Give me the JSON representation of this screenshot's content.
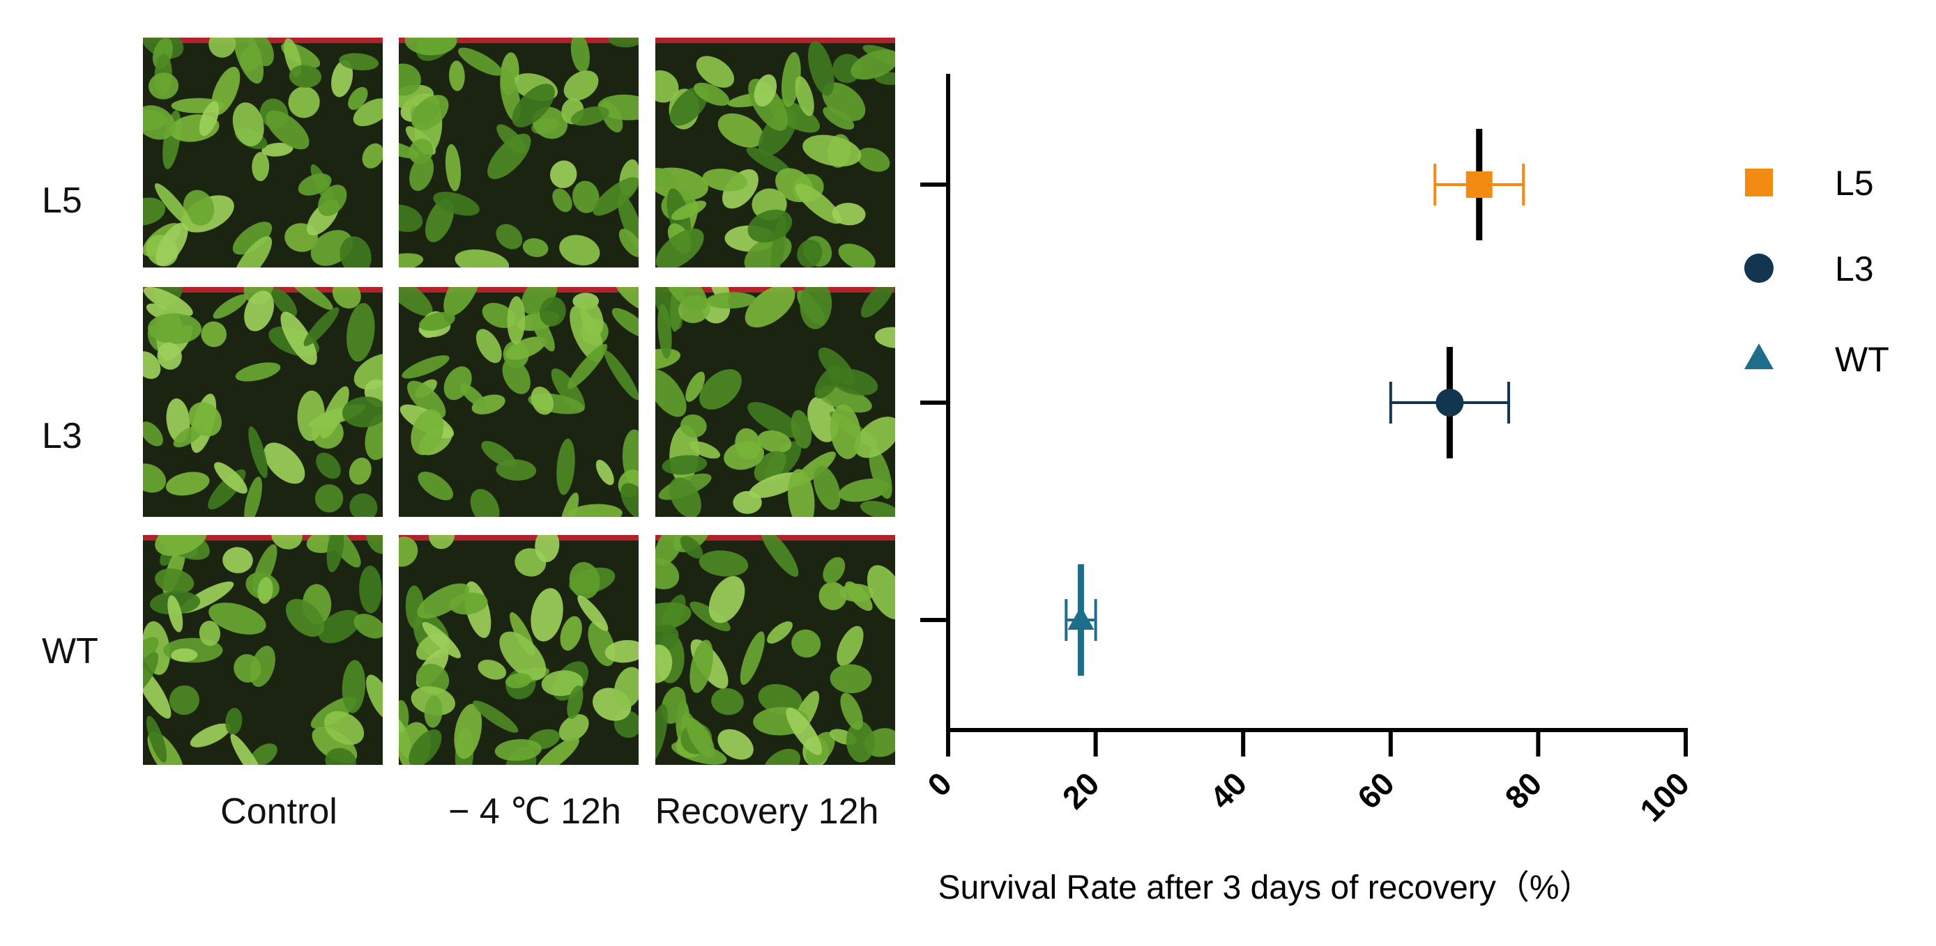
{
  "panel_photos": {
    "row_labels": [
      "L5",
      "L3",
      "WT"
    ],
    "column_labels": [
      "Control",
      "− 4 ℃ 12h",
      "Recovery 12h"
    ]
  },
  "chart_data": {
    "type": "scatter",
    "orientation": "horizontal",
    "xlabel": "Survival Rate after 3 days of recovery（%）",
    "ylabel": "",
    "xlim": [
      0,
      100
    ],
    "xticks": [
      0,
      20,
      40,
      60,
      80,
      100
    ],
    "categories": [
      "L5",
      "L3",
      "WT"
    ],
    "series": [
      {
        "name": "L5",
        "marker": "square",
        "color": "#f38a12",
        "value": 72,
        "error": 6
      },
      {
        "name": "L3",
        "marker": "circle",
        "color": "#123650",
        "value": 68,
        "error": 8
      },
      {
        "name": "WT",
        "marker": "triangle",
        "color": "#1e6e8b",
        "value": 18,
        "error": 2
      }
    ],
    "legend_position": "right",
    "grid": false
  }
}
